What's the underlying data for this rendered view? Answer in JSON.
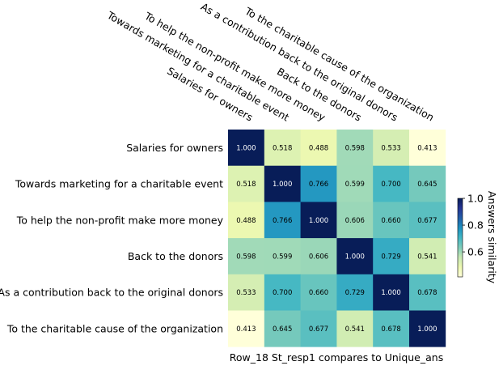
{
  "chart_data": {
    "type": "heatmap",
    "rows": [
      "Salaries for owners",
      "Towards marketing for a charitable event",
      "To help the non-profit make more money",
      "Back to the donors",
      "As a contribution back to the original donors",
      "To the charitable cause of the organization"
    ],
    "columns": [
      "Salaries for owners",
      "Towards marketing for a charitable event",
      "To help the non-profit make more money",
      "Back to the donors",
      "As a contribution back to the original donors",
      "To the charitable cause of the organization"
    ],
    "values": [
      [
        1.0,
        0.518,
        0.488,
        0.598,
        0.533,
        0.413
      ],
      [
        0.518,
        1.0,
        0.766,
        0.599,
        0.7,
        0.645
      ],
      [
        0.488,
        0.766,
        1.0,
        0.606,
        0.66,
        0.677
      ],
      [
        0.598,
        0.599,
        0.606,
        1.0,
        0.729,
        0.541
      ],
      [
        0.533,
        0.7,
        0.66,
        0.729,
        1.0,
        0.678
      ],
      [
        0.413,
        0.645,
        0.677,
        0.541,
        0.678,
        1.0
      ]
    ],
    "cell_labels": [
      [
        "1.000",
        "0.518",
        "0.488",
        "0.598",
        "0.533",
        "0.413"
      ],
      [
        "0.518",
        "1.000",
        "0.766",
        "0.599",
        "0.700",
        "0.645"
      ],
      [
        "0.488",
        "0.766",
        "1.000",
        "0.606",
        "0.660",
        "0.677"
      ],
      [
        "0.598",
        "0.599",
        "0.606",
        "1.000",
        "0.729",
        "0.541"
      ],
      [
        "0.533",
        "0.700",
        "0.660",
        "0.729",
        "1.000",
        "0.678"
      ],
      [
        "0.413",
        "0.645",
        "0.677",
        "0.541",
        "0.678",
        "1.000"
      ]
    ],
    "xlabel": "Row_18 St_resp1 compares to Unique_ans",
    "colorbar": {
      "label": "Answers similarity",
      "range": [
        0.413,
        1.0
      ],
      "ticks": [
        0.6,
        0.8,
        1.0
      ],
      "tick_labels": [
        "0.6",
        "0.8",
        "1.0"
      ],
      "colormap": "YlGnBu",
      "colors": [
        "#ffffd9",
        "#edf8b1",
        "#c7e9b4",
        "#7fcdbb",
        "#41b6c4",
        "#1d91c0",
        "#225ea8",
        "#253494",
        "#081d58"
      ]
    },
    "column_labels_position": "top",
    "column_labels_rotation": "-30deg",
    "grid": false
  }
}
